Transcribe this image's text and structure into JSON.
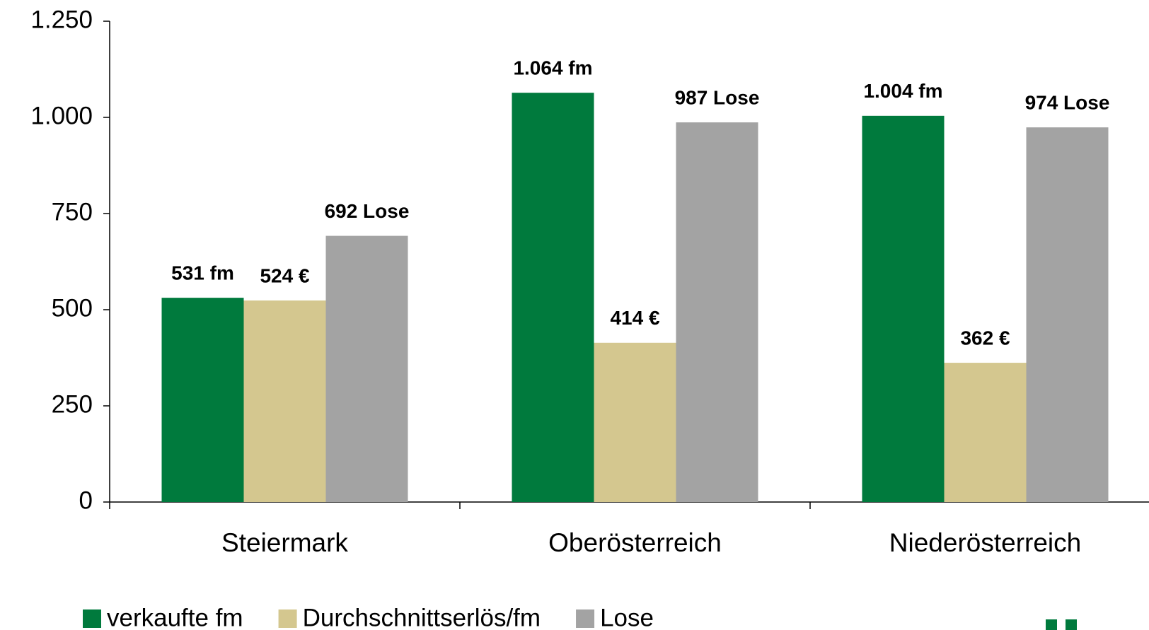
{
  "chart_data": {
    "type": "bar",
    "categories": [
      "Steiermark",
      "Oberösterreich",
      "Niederösterreich"
    ],
    "series": [
      {
        "name": "verkaufte fm",
        "color": "#007a3d",
        "values": [
          531,
          1064,
          1004
        ],
        "value_labels": [
          "531 fm",
          "1.064 fm",
          "1.004 fm"
        ]
      },
      {
        "name": "Durchschnittserlös/fm",
        "color": "#d4c78f",
        "values": [
          524,
          414,
          362
        ],
        "value_labels": [
          "524 €",
          "414 €",
          "362 €"
        ]
      },
      {
        "name": "Lose",
        "color": "#a3a3a3",
        "values": [
          692,
          987,
          974
        ],
        "value_labels": [
          "692 Lose",
          "987 Lose",
          "974 Lose"
        ]
      }
    ],
    "ylim": [
      0,
      1250
    ],
    "yticks": [
      0,
      250,
      500,
      750,
      {
        "value": 1000,
        "label": "1.000"
      },
      {
        "value": 1250,
        "label": "1.250"
      }
    ],
    "grid": false,
    "legend": "bottom"
  }
}
